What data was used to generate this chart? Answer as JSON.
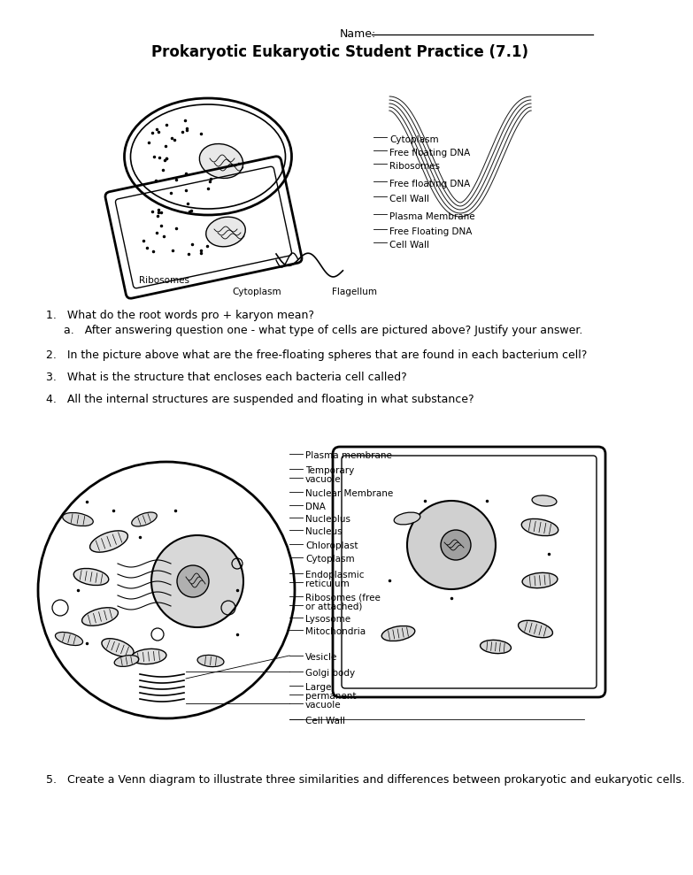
{
  "title": "Prokaryotic Eukaryotic Student Practice (7.1)",
  "bg_color": "#ffffff",
  "name_label": "Name:",
  "q1": "1.   What do the root words pro + karyon mean?",
  "q1a": "a.   After answering question one - what type of cells are pictured above? Justify your answer.",
  "q2": "2.   In the picture above what are the free-floating spheres that are found in each bacterium cell?",
  "q3": "3.   What is the structure that encloses each bacteria cell called?",
  "q4": "4.   All the internal structures are suspended and floating in what substance?",
  "q5": "5.   Create a Venn diagram to illustrate three similarities and differences between prokaryotic and eukaryotic cells.",
  "prok_labels_right": [
    [
      430,
      143,
      "Cytoplasm"
    ],
    [
      430,
      158,
      "Free floating DNA"
    ],
    [
      430,
      173,
      "Ribosomes"
    ],
    [
      430,
      193,
      "Free floating DNA"
    ],
    [
      430,
      210,
      "Cell Wall"
    ],
    [
      430,
      230,
      "Plasma Membrane"
    ],
    [
      430,
      247,
      "Free Floating DNA"
    ],
    [
      430,
      262,
      "Cell Wall"
    ]
  ],
  "prok_labels_bottom": [
    [
      175,
      302,
      "Ribosomes"
    ],
    [
      280,
      315,
      "Cytoplasm"
    ],
    [
      390,
      315,
      "Flagellum"
    ]
  ],
  "euk_labels": [
    [
      335,
      500,
      "Plasma membrane"
    ],
    [
      335,
      517,
      "Temporary"
    ],
    [
      335,
      527,
      "vacuole"
    ],
    [
      335,
      543,
      "Nuclear Membrane"
    ],
    [
      335,
      558,
      "DNA"
    ],
    [
      335,
      572,
      "Nucleolus"
    ],
    [
      335,
      586,
      "Nucleus"
    ],
    [
      335,
      602,
      "Chloroplast"
    ],
    [
      335,
      617,
      "Cytoplasm"
    ],
    [
      335,
      635,
      "Endoplasmic"
    ],
    [
      335,
      645,
      "reticulum"
    ],
    [
      335,
      661,
      "Ribosomes (free"
    ],
    [
      335,
      671,
      "or attached)"
    ],
    [
      335,
      685,
      "Lysosome"
    ],
    [
      335,
      699,
      "Mitochondria"
    ],
    [
      335,
      728,
      "Vesicle"
    ],
    [
      335,
      746,
      "Golgi body"
    ],
    [
      335,
      762,
      "Large"
    ],
    [
      335,
      772,
      "permanent"
    ],
    [
      335,
      782,
      "vacuole"
    ],
    [
      335,
      800,
      "Cell Wall"
    ]
  ]
}
